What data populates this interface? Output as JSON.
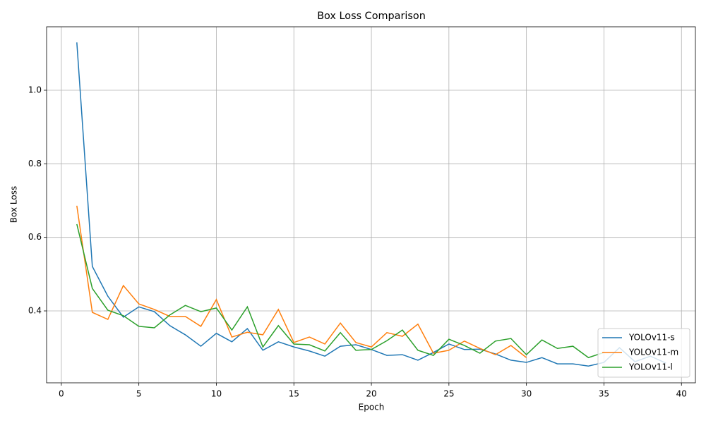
{
  "chart_data": {
    "type": "line",
    "title": "Box Loss Comparison",
    "x_label": "Epoch",
    "y_label": "Box Loss",
    "x": [
      1,
      2,
      3,
      4,
      5,
      6,
      7,
      8,
      9,
      10,
      11,
      12,
      13,
      14,
      15,
      16,
      17,
      18,
      19,
      20,
      21,
      22,
      23,
      24,
      25,
      26,
      27,
      28,
      29,
      30,
      31,
      32,
      33,
      34,
      35,
      36,
      37,
      38,
      39
    ],
    "series": [
      {
        "name": "YOLOv11-s",
        "color": "#1f77b4",
        "values": [
          1.13,
          0.521,
          0.44,
          0.383,
          0.411,
          0.398,
          0.36,
          0.335,
          0.304,
          0.339,
          0.316,
          0.352,
          0.293,
          0.316,
          0.302,
          0.291,
          0.277,
          0.304,
          0.308,
          0.295,
          0.279,
          0.281,
          0.266,
          0.287,
          0.31,
          0.295,
          0.296,
          0.283,
          0.266,
          0.26,
          0.273,
          0.256,
          0.256,
          0.25,
          0.26,
          0.3,
          0.262,
          0.277,
          0.258
        ]
      },
      {
        "name": "YOLOv11-m",
        "color": "#ff7f0e",
        "values": [
          0.686,
          0.396,
          0.377,
          0.469,
          0.419,
          0.404,
          0.385,
          0.385,
          0.358,
          0.431,
          0.329,
          0.342,
          0.335,
          0.404,
          0.314,
          0.329,
          0.31,
          0.367,
          0.314,
          0.302,
          0.341,
          0.331,
          0.364,
          0.285,
          0.293,
          0.318,
          0.298,
          0.281,
          0.306,
          0.273,
          null,
          null,
          null,
          null,
          null,
          null,
          null,
          null,
          null
        ]
      },
      {
        "name": "YOLOv11-l",
        "color": "#2ca02c",
        "values": [
          0.636,
          0.461,
          0.402,
          0.387,
          0.358,
          0.354,
          0.389,
          0.415,
          0.398,
          0.408,
          0.348,
          0.411,
          0.302,
          0.36,
          0.31,
          0.308,
          0.291,
          0.341,
          0.293,
          0.295,
          0.319,
          0.348,
          0.293,
          0.279,
          0.323,
          0.306,
          0.285,
          0.318,
          0.325,
          0.281,
          0.321,
          0.298,
          0.304,
          0.273,
          0.287,
          null,
          null,
          null,
          null
        ]
      }
    ],
    "xlim": [
      -0.95,
      40.9
    ],
    "ylim": [
      0.2045,
      1.1725
    ],
    "xticks": [
      0,
      5,
      10,
      15,
      20,
      25,
      30,
      35,
      40
    ],
    "yticks": [
      0.4,
      0.6,
      0.8,
      {
        "value": 1,
        "label": "1.0"
      }
    ],
    "grid": true,
    "legend": "lower right"
  }
}
